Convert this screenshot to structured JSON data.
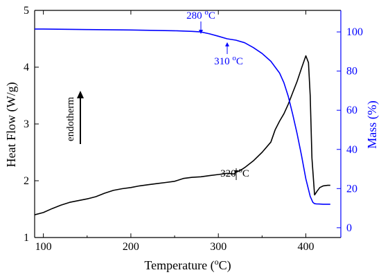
{
  "chart_data": {
    "type": "line",
    "xlabel": "Temperature (°C)",
    "xlabel_parts": {
      "pre": "Temperature (",
      "sup": "o",
      "post": "C)"
    },
    "ylabel_left": "Heat Flow (W/g)",
    "ylabel_right": "Mass (%)",
    "xlim": [
      90,
      440
    ],
    "ylim_left": [
      1,
      5
    ],
    "ylim_right": [
      -5,
      111
    ],
    "xticks": [
      100,
      200,
      300,
      400
    ],
    "yticks_left": [
      1,
      2,
      3,
      4,
      5
    ],
    "yticks_right": [
      0,
      20,
      40,
      60,
      80,
      100
    ],
    "grid": false,
    "colors": {
      "heat_flow": "#000000",
      "mass": "#0000ff",
      "axis_left": "#000000",
      "axis_right": "#0000ff"
    },
    "series": [
      {
        "axis": "left",
        "color": "#000000",
        "x": [
          90,
          100,
          110,
          120,
          130,
          140,
          150,
          160,
          170,
          180,
          190,
          200,
          210,
          220,
          230,
          240,
          250,
          260,
          270,
          280,
          290,
          300,
          310,
          318,
          320,
          325,
          330,
          340,
          350,
          360,
          365,
          370,
          375,
          380,
          385,
          390,
          395,
          400,
          403,
          405,
          407,
          410,
          413,
          416,
          420,
          425,
          428
        ],
        "y": [
          1.4,
          1.44,
          1.51,
          1.57,
          1.62,
          1.65,
          1.68,
          1.72,
          1.78,
          1.83,
          1.86,
          1.88,
          1.91,
          1.93,
          1.95,
          1.97,
          1.99,
          2.04,
          2.06,
          2.07,
          2.09,
          2.11,
          2.13,
          2.12,
          2.15,
          2.18,
          2.23,
          2.35,
          2.5,
          2.68,
          2.9,
          3.05,
          3.18,
          3.35,
          3.55,
          3.75,
          3.98,
          4.2,
          4.08,
          3.5,
          2.4,
          1.75,
          1.82,
          1.88,
          1.91,
          1.92,
          1.92
        ]
      },
      {
        "axis": "right",
        "color": "#0000ff",
        "x": [
          90,
          100,
          150,
          200,
          250,
          270,
          280,
          290,
          300,
          310,
          320,
          330,
          340,
          350,
          360,
          370,
          375,
          380,
          385,
          390,
          395,
          400,
          405,
          408,
          410,
          412,
          415,
          420,
          425,
          428
        ],
        "y": [
          101.5,
          101.5,
          101.2,
          101.0,
          100.6,
          100.3,
          100.0,
          99.0,
          97.8,
          96.5,
          95.8,
          94.5,
          92.0,
          89.0,
          85.0,
          79.0,
          74.0,
          67.0,
          58.0,
          48.0,
          37.0,
          25.0,
          16.0,
          13.0,
          12.3,
          12.2,
          12.1,
          12.0,
          12.0,
          12.0
        ]
      }
    ],
    "annotations": [
      {
        "text_pre": "280 ",
        "sup": "o",
        "text_post": "C",
        "axis": "right",
        "x": 280,
        "y": 100.0,
        "color": "#0000ff"
      },
      {
        "text_pre": "310 ",
        "sup": "o",
        "text_post": "C",
        "axis": "right",
        "x": 310,
        "y": 96.5,
        "color": "#0000ff"
      },
      {
        "text_pre": "320 ",
        "sup": "o",
        "text_post": "C",
        "axis": "left",
        "x": 320,
        "y": 2.15,
        "color": "#000000"
      },
      {
        "text": "endotherm",
        "color": "#000000"
      }
    ]
  }
}
